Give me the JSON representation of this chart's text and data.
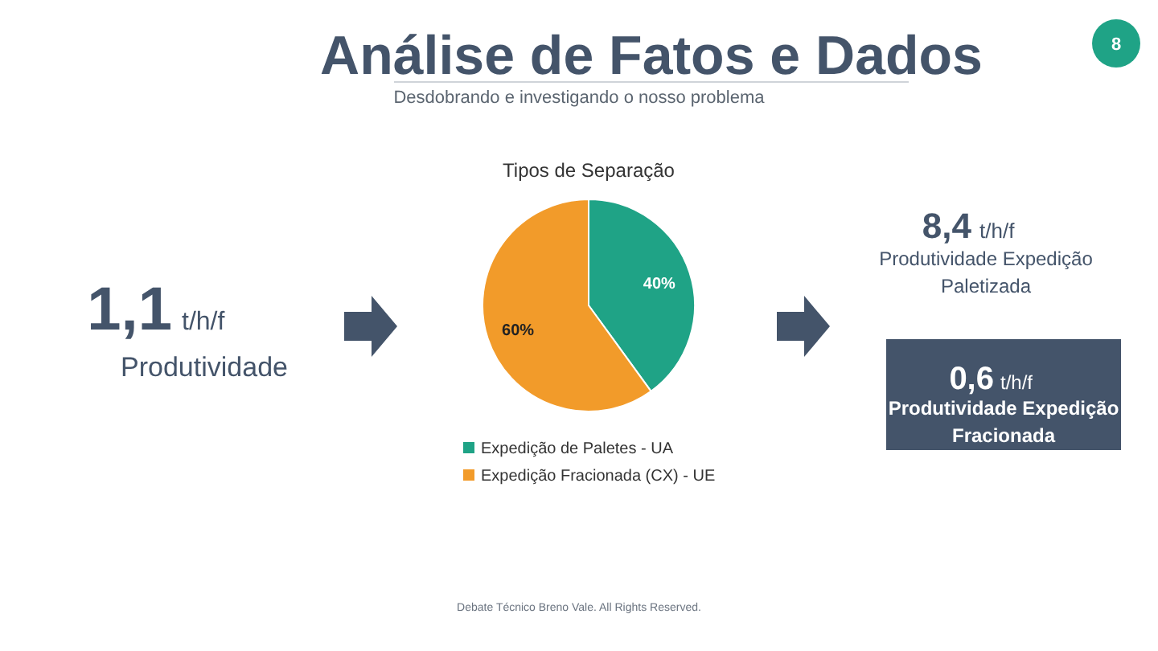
{
  "chart_data": {
    "type": "pie",
    "title": "Tipos de Separação",
    "categories": [
      "Expedição de Paletes - UA",
      "Expedição Fracionada (CX) - UE"
    ],
    "values": [
      40,
      60
    ],
    "colors": [
      "#1fa386",
      "#f29b2a"
    ],
    "value_labels": [
      "40%",
      "60%"
    ],
    "legend": "bottom",
    "annotations": [
      "Análise de Fatos e Dados",
      "Desdobrando e investigando o nosso problema",
      "8",
      "1,1",
      "t/h/f",
      "Produtividade",
      "8,4",
      "t/h/f",
      "Produtividade Expedição Paletizada",
      "0,6",
      "t/h/f",
      "Produtividade Expedição Fracionada",
      "Debate Técnico Breno Vale. All Rights Reserved."
    ]
  }
}
